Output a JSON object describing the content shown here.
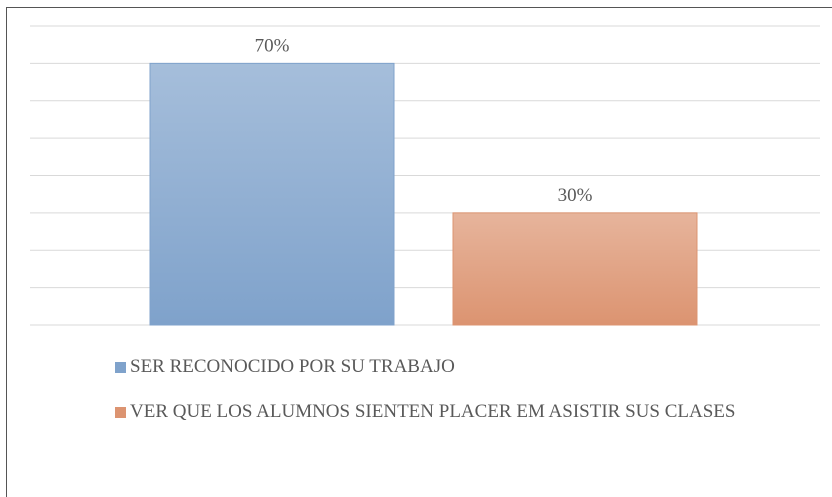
{
  "chart_data": {
    "type": "bar",
    "series": [
      {
        "name": "SER RECONOCIDO POR SU TRABAJO",
        "color": "#8db4e2",
        "values": [
          70
        ],
        "value_labels": [
          "70%"
        ]
      },
      {
        "name": "VER QUE LOS ALUMNOS SIENTEN PLACER EM ASISTIR SUS CLASES",
        "color": "#f4a47e",
        "values": [
          30
        ],
        "value_labels": [
          "30%"
        ]
      }
    ],
    "ylim": [
      0,
      80
    ],
    "yticks": [
      0,
      10,
      20,
      30,
      40,
      50,
      60,
      70,
      80
    ],
    "grid": true,
    "legend": "bottom"
  }
}
